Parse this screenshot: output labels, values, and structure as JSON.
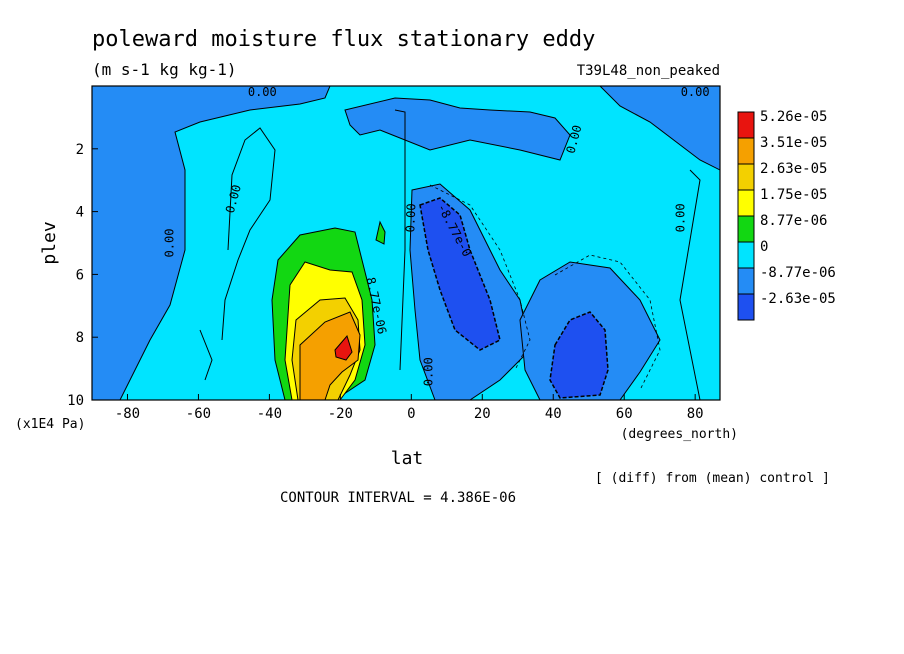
{
  "chart_data": {
    "type": "heatmap",
    "title": "poleward moisture flux stationary eddy",
    "units": "(m s-1 kg kg-1)",
    "run_label": "T39L48_non_peaked",
    "xlabel": "lat",
    "x_units": "(degrees_north)",
    "ylabel": "plev",
    "y_units": "(x1E4 Pa)",
    "xlim": [
      -90,
      87
    ],
    "ylim": [
      10,
      0
    ],
    "x_ticks": [
      -80,
      -60,
      -40,
      -20,
      0,
      20,
      40,
      60,
      80
    ],
    "y_ticks": [
      2,
      4,
      6,
      8,
      10
    ],
    "note": "[ (diff) from (mean) control ]",
    "contour_interval": "CONTOUR INTERVAL = 4.386E-06",
    "legend": {
      "placement": "right",
      "levels": [
        "5.26e-05",
        "3.51e-05",
        "2.63e-05",
        "1.75e-05",
        "8.77e-06",
        "0",
        "-8.77e-06",
        "-2.63e-05"
      ],
      "colors": [
        "#e8140f",
        "#f5a000",
        "#f3d000",
        "#ffff00",
        "#12d712",
        "#00e4ff",
        "#248cf5",
        "#1e50f0"
      ]
    },
    "contour_labels": [
      {
        "text": "0.00",
        "lat": -42,
        "p": 0.2,
        "angle": 0
      },
      {
        "text": "0.00",
        "lat": 80,
        "p": 0.2,
        "angle": 0
      },
      {
        "text": "0.00",
        "lat": 46,
        "p": 1.7,
        "angle": -75
      },
      {
        "text": "0.00",
        "lat": -50,
        "p": 3.6,
        "angle": -75
      },
      {
        "text": "0.00",
        "lat": -68,
        "p": 5.0,
        "angle": -90
      },
      {
        "text": "0.00",
        "lat": 0,
        "p": 4.2,
        "angle": -88
      },
      {
        "text": "0.00",
        "lat": 76,
        "p": 4.2,
        "angle": -90
      },
      {
        "text": "0.00",
        "lat": 5,
        "p": 9.1,
        "angle": -90
      },
      {
        "text": "-8.77e-0",
        "lat": 12,
        "p": 4.6,
        "angle": 62
      },
      {
        "text": "8.77e-06",
        "lat": -10,
        "p": 7.0,
        "angle": 78
      }
    ],
    "fields": {
      "background": {
        "level": "0",
        "color": "#00e4ff"
      },
      "positive_max": {
        "lat": -18,
        "p": 8.4,
        "value_range": "3.51e-05 to 5.26e-05"
      },
      "negative_min_1": {
        "lat": 14,
        "p": 5.0,
        "value_range": "-2.63e-05 to -8.77e-06"
      },
      "negative_min_2": {
        "lat": 48,
        "p": 8.5,
        "value_range": "-2.63e-05 to -8.77e-06"
      }
    }
  }
}
